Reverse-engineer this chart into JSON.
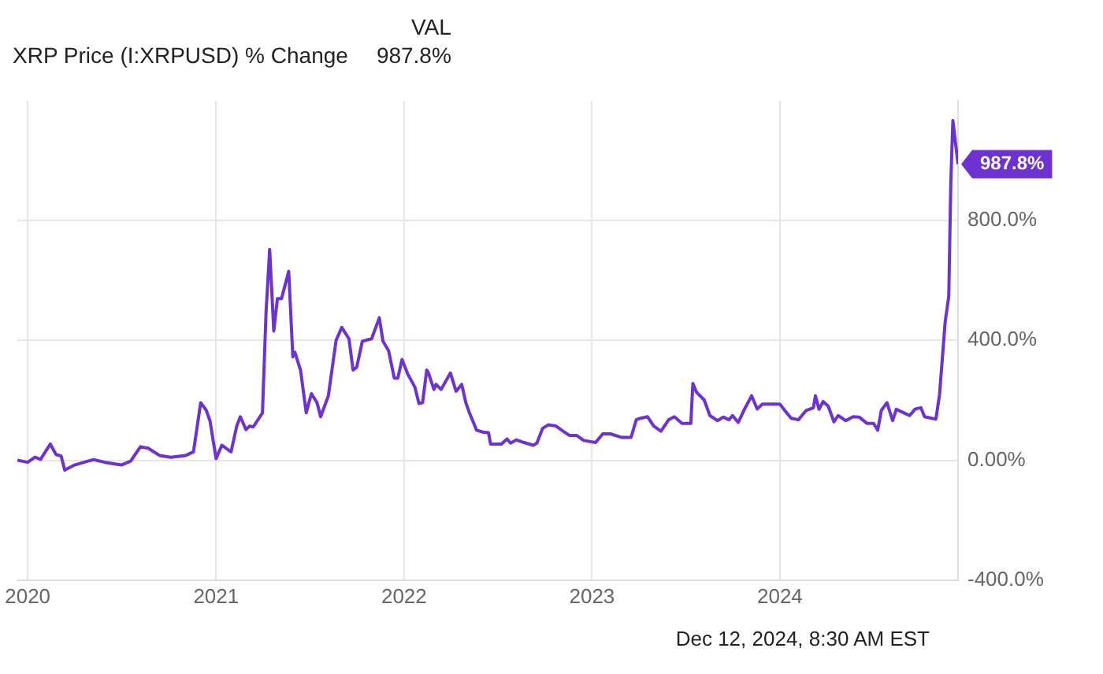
{
  "chart_data": {
    "type": "line",
    "legend": "top left",
    "legend_title": "VAL",
    "grid": true,
    "marker": "none",
    "line_style": "solid",
    "xlim": [
      "2019-12-12",
      "2024-12-12"
    ],
    "xticks": [
      {
        "value": "2020-01-01",
        "label": "2020"
      },
      {
        "value": "2021-01-01",
        "label": "2021"
      },
      {
        "value": "2022-01-01",
        "label": "2022"
      },
      {
        "value": "2023-01-01",
        "label": "2023"
      },
      {
        "value": "2024-01-01",
        "label": "2024"
      }
    ],
    "ylim": [
      -400,
      1200
    ],
    "yticks": [
      {
        "value": -400,
        "label": "-400.0%"
      },
      {
        "value": 0,
        "label": "0.00%"
      },
      {
        "value": 400,
        "label": "400.0%"
      },
      {
        "value": 800,
        "label": "800.0%"
      }
    ],
    "annotations": [
      "Dec 12, 2024, 8:30 AM EST"
    ],
    "series": [
      {
        "name": "XRP Price (I:XRPUSD) % Change",
        "color": "#6c33d1",
        "x": [
          "2019-12-12",
          "2020-01-01",
          "2020-01-15",
          "2020-01-26",
          "2020-02-14",
          "2020-02-25",
          "2020-03-06",
          "2020-03-13",
          "2020-04-01",
          "2020-04-27",
          "2020-05-08",
          "2020-05-30",
          "2020-07-01",
          "2020-07-19",
          "2020-08-07",
          "2020-08-22",
          "2020-09-13",
          "2020-10-05",
          "2020-11-03",
          "2020-11-18",
          "2020-12-02",
          "2020-12-13",
          "2020-12-20",
          "2021-01-01",
          "2021-01-12",
          "2021-01-30",
          "2021-02-10",
          "2021-02-17",
          "2021-02-28",
          "2021-03-07",
          "2021-03-14",
          "2021-04-01",
          "2021-04-08",
          "2021-04-15",
          "2021-04-23",
          "2021-04-30",
          "2021-05-08",
          "2021-05-22",
          "2021-05-30",
          "2021-06-03",
          "2021-06-14",
          "2021-06-25",
          "2021-07-05",
          "2021-07-16",
          "2021-07-23",
          "2021-08-07",
          "2021-08-22",
          "2021-09-02",
          "2021-09-16",
          "2021-09-24",
          "2021-10-01",
          "2021-10-12",
          "2021-10-30",
          "2021-11-14",
          "2021-11-21",
          "2021-12-02",
          "2021-12-13",
          "2021-12-20",
          "2021-12-28",
          "2022-01-08",
          "2022-01-22",
          "2022-01-30",
          "2022-02-06",
          "2022-02-14",
          "2022-02-17",
          "2022-02-28",
          "2022-03-04",
          "2022-03-14",
          "2022-04-01",
          "2022-04-12",
          "2022-04-23",
          "2022-05-01",
          "2022-05-08",
          "2022-05-22",
          "2022-06-03",
          "2022-06-14",
          "2022-06-18",
          "2022-07-09",
          "2022-07-20",
          "2022-07-27",
          "2022-08-07",
          "2022-08-22",
          "2022-09-09",
          "2022-09-16",
          "2022-09-27",
          "2022-10-08",
          "2022-10-23",
          "2022-11-06",
          "2022-11-18",
          "2022-12-02",
          "2022-12-16",
          "2023-01-08",
          "2023-01-22",
          "2023-02-06",
          "2023-02-28",
          "2023-03-18",
          "2023-03-28",
          "2023-04-05",
          "2023-04-19",
          "2023-05-01",
          "2023-05-15",
          "2023-05-30",
          "2023-06-10",
          "2023-06-25",
          "2023-07-12",
          "2023-07-16",
          "2023-07-23",
          "2023-08-07",
          "2023-08-18",
          "2023-09-02",
          "2023-09-13",
          "2023-09-24",
          "2023-10-01",
          "2023-10-12",
          "2023-10-23",
          "2023-11-07",
          "2023-11-18",
          "2023-11-28",
          "2023-12-16",
          "2024-01-01",
          "2024-01-12",
          "2024-01-23",
          "2024-02-06",
          "2024-02-21",
          "2024-03-06",
          "2024-03-10",
          "2024-03-17",
          "2024-03-25",
          "2024-04-04",
          "2024-04-15",
          "2024-04-23",
          "2024-05-08",
          "2024-05-22",
          "2024-06-03",
          "2024-06-18",
          "2024-07-01",
          "2024-07-09",
          "2024-07-16",
          "2024-07-27",
          "2024-08-07",
          "2024-08-14",
          "2024-08-29",
          "2024-09-09",
          "2024-09-20",
          "2024-10-01",
          "2024-10-08",
          "2024-10-30",
          "2024-11-06",
          "2024-11-17",
          "2024-11-24",
          "2024-11-28",
          "2024-12-02",
          "2024-12-12"
        ],
        "values": [
          0,
          -7,
          10,
          3,
          54,
          19,
          14,
          -33,
          -16,
          -3,
          2,
          -7,
          -16,
          -3,
          45,
          40,
          16,
          10,
          16,
          28,
          192,
          166,
          132,
          5,
          50,
          28,
          114,
          145,
          102,
          114,
          111,
          158,
          495,
          703,
          431,
          539,
          539,
          630,
          345,
          360,
          300,
          158,
          222,
          192,
          145,
          215,
          400,
          443,
          405,
          301,
          310,
          397,
          405,
          475,
          397,
          365,
          274,
          274,
          336,
          288,
          244,
          189,
          192,
          301,
          293,
          236,
          253,
          236,
          291,
          230,
          253,
          192,
          158,
          100,
          94,
          92,
          54,
          54,
          71,
          57,
          68,
          59,
          50,
          57,
          106,
          118,
          114,
          97,
          83,
          83,
          66,
          59,
          88,
          88,
          76,
          76,
          135,
          140,
          145,
          114,
          97,
          135,
          145,
          123,
          123,
          256,
          227,
          201,
          149,
          132,
          144,
          135,
          149,
          126,
          166,
          215,
          171,
          187,
          187,
          187,
          163,
          140,
          135,
          166,
          175,
          215,
          170,
          196,
          180,
          128,
          149,
          132,
          145,
          144,
          123,
          123,
          100,
          166,
          192,
          132,
          170,
          158,
          149,
          171,
          175,
          145,
          137,
          218,
          461,
          547,
          928,
          1133,
          987.8
        ],
        "value_labels": [
          null,
          null,
          null,
          null,
          null,
          null,
          null,
          null,
          null,
          null,
          null,
          null,
          null,
          null,
          null,
          null,
          null,
          null,
          null,
          null,
          null,
          null,
          null,
          null,
          null,
          null,
          null,
          null,
          null,
          null,
          null,
          null,
          null,
          null,
          null,
          null,
          null,
          null,
          null,
          null,
          null,
          null,
          null,
          null,
          null,
          null,
          null,
          null,
          null,
          null,
          null,
          null,
          null,
          null,
          null,
          null,
          null,
          null,
          null,
          null,
          null,
          null,
          null,
          null,
          null,
          null,
          null,
          null,
          null,
          null,
          null,
          null,
          null,
          null,
          null,
          null,
          null,
          null,
          null,
          null,
          null,
          null,
          null,
          null,
          null,
          null,
          null,
          null,
          null,
          null,
          null,
          null,
          null,
          null,
          null,
          null,
          null,
          null,
          null,
          null,
          null,
          null,
          null,
          null,
          null,
          null,
          null,
          null,
          null,
          null,
          null,
          null,
          null,
          null,
          null,
          null,
          null,
          null,
          null,
          null,
          null,
          null,
          null,
          null,
          null,
          null,
          null,
          null,
          null,
          null,
          null,
          null,
          null,
          null,
          null,
          null,
          null,
          null,
          null,
          null,
          null,
          null,
          null,
          null,
          null,
          null,
          null,
          null,
          null,
          null,
          null,
          null,
          "987.8%"
        ]
      }
    ]
  }
}
